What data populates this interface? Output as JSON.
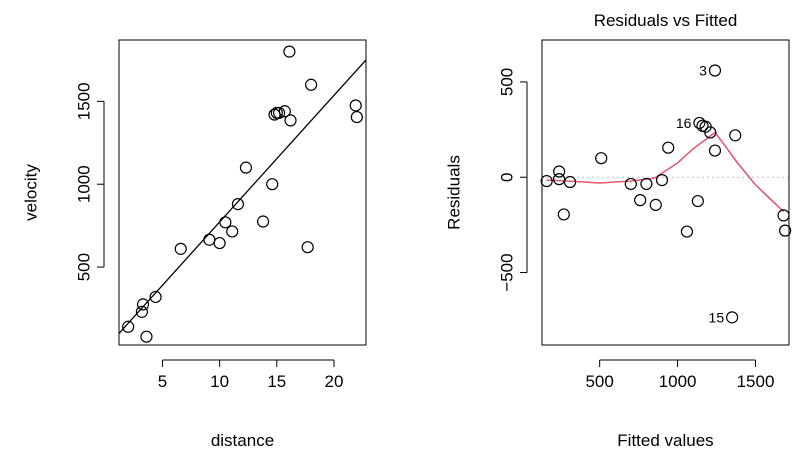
{
  "chart_data": [
    {
      "type": "scatter",
      "title": "",
      "xlabel": "distance",
      "ylabel": "velocity",
      "xlim": [
        1.2,
        22.8
      ],
      "ylim": [
        30,
        1870
      ],
      "xticks": [
        5,
        10,
        15,
        20
      ],
      "yticks": [
        500,
        1000,
        1500
      ],
      "x_tick_labels": [
        "5",
        "10",
        "15",
        "20"
      ],
      "y_tick_labels": [
        "500",
        "1000",
        "1500"
      ],
      "grid": false,
      "series": [
        {
          "points": [
            [
              2.0,
              140
            ],
            [
              3.2,
              230
            ],
            [
              3.3,
              275
            ],
            [
              3.6,
              80
            ],
            [
              4.4,
              320
            ],
            [
              6.6,
              610
            ],
            [
              9.1,
              665
            ],
            [
              10.0,
              645
            ],
            [
              10.5,
              770
            ],
            [
              11.1,
              715
            ],
            [
              11.6,
              880
            ],
            [
              12.3,
              1100
            ],
            [
              13.8,
              775
            ],
            [
              14.6,
              1000
            ],
            [
              14.8,
              1420
            ],
            [
              15.0,
              1430
            ],
            [
              15.2,
              1430
            ],
            [
              15.7,
              1440
            ],
            [
              16.1,
              1800
            ],
            [
              16.2,
              1385
            ],
            [
              17.7,
              620
            ],
            [
              18.0,
              1600
            ],
            [
              21.9,
              1475
            ],
            [
              22.0,
              1405
            ]
          ]
        }
      ],
      "fit_line": {
        "x": [
          1.2,
          22.8
        ],
        "y": [
          100,
          1750
        ]
      }
    },
    {
      "type": "scatter",
      "title": "Residuals vs Fitted",
      "xlabel": "Fitted values",
      "ylabel": "Residuals",
      "xlim": [
        130,
        1715
      ],
      "ylim": [
        -880,
        720
      ],
      "xticks": [
        500,
        1000,
        1500
      ],
      "yticks": [
        -500,
        0,
        500
      ],
      "x_tick_labels": [
        "500",
        "1000",
        "1500"
      ],
      "y_tick_labels": [
        "−500",
        "0",
        "500"
      ],
      "grid": false,
      "reference_line": 0,
      "series": [
        {
          "points": [
            [
              160,
              -20
            ],
            [
              240,
              30
            ],
            [
              240,
              -10
            ],
            [
              270,
              -195
            ],
            [
              310,
              -25
            ],
            [
              510,
              100
            ],
            [
              700,
              -35
            ],
            [
              760,
              -120
            ],
            [
              800,
              -35
            ],
            [
              860,
              -145
            ],
            [
              900,
              -15
            ],
            [
              940,
              155
            ],
            [
              1060,
              -285
            ],
            [
              1130,
              -125
            ],
            [
              1140,
              285
            ],
            [
              1160,
              270
            ],
            [
              1180,
              265
            ],
            [
              1210,
              235
            ],
            [
              1240,
              140
            ],
            [
              1240,
              560
            ],
            [
              1350,
              -735
            ],
            [
              1370,
              220
            ],
            [
              1680,
              -200
            ],
            [
              1690,
              -280
            ]
          ]
        }
      ],
      "smoother": {
        "x": [
          160,
          300,
          500,
          700,
          850,
          1000,
          1100,
          1200,
          1240,
          1300,
          1380,
          1500,
          1680
        ],
        "y": [
          -15,
          -20,
          -30,
          -20,
          -5,
          75,
          150,
          210,
          235,
          170,
          80,
          -40,
          -180
        ]
      },
      "point_labels": [
        {
          "text": "3",
          "x": 1240,
          "y": 560
        },
        {
          "text": "16",
          "x": 1140,
          "y": 285
        },
        {
          "text": "15",
          "x": 1350,
          "y": -735
        }
      ],
      "colors": {
        "smoother": "#df536b",
        "reference": "#bebebe"
      }
    }
  ]
}
